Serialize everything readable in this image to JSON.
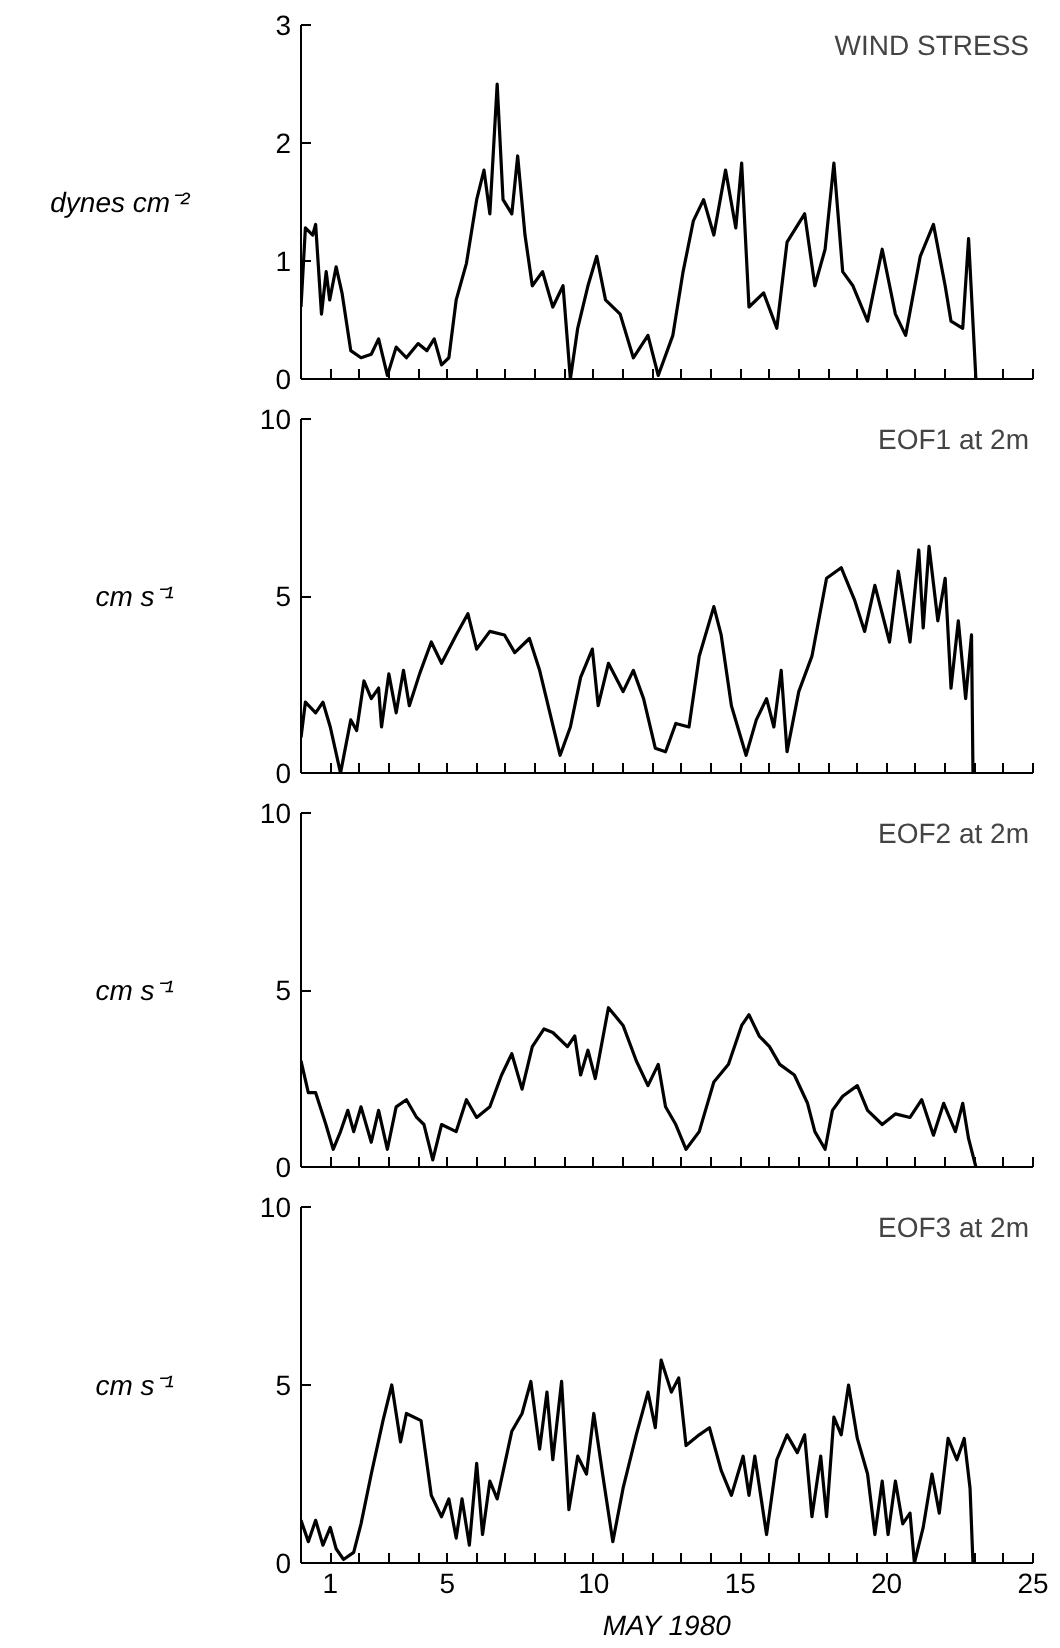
{
  "chart_data": [
    {
      "type": "line",
      "title": "WIND STRESS",
      "ylabel": "dynes cm⁻²",
      "xlim": [
        0,
        25
      ],
      "ylim": [
        0,
        3
      ],
      "yticks": [
        0,
        1,
        2,
        3
      ],
      "xticks": [
        1,
        {
          "value": 2,
          "label": null
        },
        {
          "value": 3,
          "label": null
        },
        {
          "value": 4,
          "label": null
        },
        5,
        {
          "value": 6,
          "label": null
        },
        {
          "value": 7,
          "label": null
        },
        {
          "value": 8,
          "label": null
        },
        {
          "value": 9,
          "label": null
        },
        10,
        {
          "value": 11,
          "label": null
        },
        {
          "value": 12,
          "label": null
        },
        {
          "value": 13,
          "label": null
        },
        {
          "value": 14,
          "label": null
        },
        15,
        {
          "value": 16,
          "label": null
        },
        {
          "value": 17,
          "label": null
        },
        {
          "value": 18,
          "label": null
        },
        {
          "value": 19,
          "label": null
        },
        20,
        {
          "value": 21,
          "label": null
        },
        {
          "value": 22,
          "label": null
        },
        {
          "value": 23,
          "label": null
        },
        {
          "value": 24,
          "label": null
        },
        25
      ],
      "tick_labels": "y",
      "grid": false,
      "series": [
        {
          "color": "#000000",
          "x": [
            0,
            0.15,
            0.4,
            0.5,
            0.7,
            0.86,
            0.98,
            1.2,
            1.4,
            1.7,
            2.05,
            2.4,
            2.65,
            2.95,
            3.25,
            3.6,
            4.0,
            4.3,
            4.55,
            4.8,
            5.05,
            5.3,
            5.65,
            6.0,
            6.25,
            6.45,
            6.7,
            6.9,
            7.2,
            7.4,
            7.65,
            7.9,
            8.25,
            8.6,
            8.95,
            9.2,
            9.45,
            9.8,
            10.1,
            10.4,
            10.9,
            11.35,
            11.85,
            12.2,
            12.7,
            13.05,
            13.4,
            13.75,
            14.1,
            14.5,
            14.85,
            15.05,
            15.3,
            15.8,
            16.25,
            16.6,
            17.2,
            17.55,
            17.9,
            18.2,
            18.5,
            18.85,
            19.35,
            19.85,
            20.3,
            20.65,
            21.15,
            21.6,
            22.0,
            22.2,
            22.6,
            22.8,
            23.05
          ],
          "values": [
            0.61,
            1.28,
            1.22,
            1.31,
            0.55,
            0.91,
            0.67,
            0.95,
            0.73,
            0.24,
            0.18,
            0.21,
            0.34,
            0.03,
            0.27,
            0.18,
            0.3,
            0.24,
            0.34,
            0.12,
            0.18,
            0.67,
            0.98,
            1.52,
            1.77,
            1.4,
            2.5,
            1.52,
            1.4,
            1.89,
            1.22,
            0.79,
            0.91,
            0.61,
            0.79,
            0,
            0.43,
            0.79,
            1.04,
            0.67,
            0.55,
            0.18,
            0.37,
            0.03,
            0.37,
            0.91,
            1.34,
            1.52,
            1.22,
            1.77,
            1.28,
            1.83,
            0.61,
            0.73,
            0.43,
            1.16,
            1.4,
            0.79,
            1.1,
            1.83,
            0.91,
            0.79,
            0.49,
            1.1,
            0.55,
            0.37,
            1.04,
            1.31,
            0.79,
            0.49,
            0.43,
            1.19,
            0
          ]
        }
      ]
    },
    {
      "type": "line",
      "title": "EOF1 at 2m",
      "ylabel": "cm s⁻¹",
      "xlim": [
        0,
        25
      ],
      "ylim": [
        0,
        10
      ],
      "yticks": [
        0,
        5,
        10
      ],
      "xticks": [
        1,
        {
          "value": 2,
          "label": null
        },
        {
          "value": 3,
          "label": null
        },
        {
          "value": 4,
          "label": null
        },
        5,
        {
          "value": 6,
          "label": null
        },
        {
          "value": 7,
          "label": null
        },
        {
          "value": 8,
          "label": null
        },
        {
          "value": 9,
          "label": null
        },
        10,
        {
          "value": 11,
          "label": null
        },
        {
          "value": 12,
          "label": null
        },
        {
          "value": 13,
          "label": null
        },
        {
          "value": 14,
          "label": null
        },
        15,
        {
          "value": 16,
          "label": null
        },
        {
          "value": 17,
          "label": null
        },
        {
          "value": 18,
          "label": null
        },
        {
          "value": 19,
          "label": null
        },
        20,
        {
          "value": 21,
          "label": null
        },
        {
          "value": 22,
          "label": null
        },
        {
          "value": 23,
          "label": null
        },
        {
          "value": 24,
          "label": null
        },
        25
      ],
      "tick_labels": "y",
      "grid": false,
      "series": [
        {
          "color": "#000000",
          "x": [
            0,
            0.15,
            0.5,
            0.75,
            1.0,
            1.35,
            1.7,
            1.9,
            2.15,
            2.4,
            2.65,
            2.75,
            3.0,
            3.25,
            3.5,
            3.7,
            4.05,
            4.45,
            4.8,
            5.3,
            5.7,
            6.0,
            6.45,
            6.95,
            7.3,
            7.8,
            8.15,
            8.5,
            8.85,
            9.2,
            9.55,
            9.95,
            10.15,
            10.5,
            11.0,
            11.35,
            11.7,
            12.1,
            12.45,
            12.8,
            13.25,
            13.6,
            14.1,
            14.35,
            14.7,
            15.2,
            15.55,
            15.9,
            16.15,
            16.4,
            16.6,
            17.0,
            17.45,
            17.95,
            18.45,
            18.9,
            19.25,
            19.6,
            20.1,
            20.4,
            20.8,
            21.1,
            21.25,
            21.45,
            21.75,
            22.0,
            22.2,
            22.45,
            22.7,
            22.9,
            22.95
          ],
          "values": [
            1.0,
            2.0,
            1.7,
            2.0,
            1.3,
            0,
            1.5,
            1.2,
            2.6,
            2.1,
            2.4,
            1.3,
            2.8,
            1.7,
            2.9,
            1.9,
            2.8,
            3.7,
            3.1,
            3.9,
            4.5,
            3.5,
            4.0,
            3.9,
            3.4,
            3.8,
            2.9,
            1.7,
            0.5,
            1.3,
            2.7,
            3.5,
            1.9,
            3.1,
            2.3,
            2.9,
            2.1,
            0.7,
            0.6,
            1.4,
            1.3,
            3.3,
            4.7,
            3.9,
            1.9,
            0.5,
            1.5,
            2.1,
            1.3,
            2.9,
            0.6,
            2.3,
            3.3,
            5.5,
            5.8,
            4.9,
            4.0,
            5.3,
            3.7,
            5.7,
            3.7,
            6.3,
            4.1,
            6.4,
            4.3,
            5.5,
            2.4,
            4.3,
            2.1,
            3.9,
            0
          ]
        }
      ]
    },
    {
      "type": "line",
      "title": "EOF2 at 2m",
      "ylabel": "cm s⁻¹",
      "xlim": [
        0,
        25
      ],
      "ylim": [
        0,
        10
      ],
      "yticks": [
        0,
        5,
        10
      ],
      "xticks": [
        1,
        {
          "value": 2,
          "label": null
        },
        {
          "value": 3,
          "label": null
        },
        {
          "value": 4,
          "label": null
        },
        5,
        {
          "value": 6,
          "label": null
        },
        {
          "value": 7,
          "label": null
        },
        {
          "value": 8,
          "label": null
        },
        {
          "value": 9,
          "label": null
        },
        10,
        {
          "value": 11,
          "label": null
        },
        {
          "value": 12,
          "label": null
        },
        {
          "value": 13,
          "label": null
        },
        {
          "value": 14,
          "label": null
        },
        15,
        {
          "value": 16,
          "label": null
        },
        {
          "value": 17,
          "label": null
        },
        {
          "value": 18,
          "label": null
        },
        {
          "value": 19,
          "label": null
        },
        20,
        {
          "value": 21,
          "label": null
        },
        {
          "value": 22,
          "label": null
        },
        {
          "value": 23,
          "label": null
        },
        {
          "value": 24,
          "label": null
        },
        25
      ],
      "tick_labels": "y",
      "grid": false,
      "series": [
        {
          "color": "#000000",
          "x": [
            0,
            0.25,
            0.5,
            0.85,
            1.1,
            1.35,
            1.6,
            1.8,
            2.05,
            2.4,
            2.65,
            2.95,
            3.25,
            3.6,
            3.95,
            4.2,
            4.5,
            4.8,
            5.3,
            5.65,
            6.0,
            6.45,
            6.85,
            7.2,
            7.55,
            7.9,
            8.3,
            8.6,
            9.1,
            9.35,
            9.55,
            9.8,
            10.05,
            10.5,
            11.0,
            11.45,
            11.85,
            12.2,
            12.45,
            12.8,
            13.15,
            13.6,
            14.1,
            14.6,
            15.05,
            15.3,
            15.65,
            16.0,
            16.35,
            16.85,
            17.3,
            17.55,
            17.9,
            18.15,
            18.5,
            19.0,
            19.35,
            19.85,
            20.3,
            20.8,
            21.2,
            21.6,
            21.95,
            22.35,
            22.6,
            22.8,
            23.05
          ],
          "values": [
            3.0,
            2.1,
            2.1,
            1.2,
            0.5,
            1.0,
            1.6,
            1.0,
            1.7,
            0.7,
            1.6,
            0.5,
            1.7,
            1.9,
            1.4,
            1.2,
            0.2,
            1.2,
            1.0,
            1.9,
            1.4,
            1.7,
            2.6,
            3.2,
            2.2,
            3.4,
            3.9,
            3.8,
            3.4,
            3.7,
            2.6,
            3.3,
            2.5,
            4.5,
            4.0,
            3.0,
            2.3,
            2.9,
            1.7,
            1.2,
            0.5,
            1.0,
            2.4,
            2.9,
            4.0,
            4.3,
            3.7,
            3.4,
            2.9,
            2.6,
            1.8,
            1.0,
            0.5,
            1.6,
            2.0,
            2.3,
            1.6,
            1.2,
            1.5,
            1.4,
            1.9,
            0.9,
            1.8,
            1.0,
            1.8,
            0.8,
            0
          ]
        }
      ]
    },
    {
      "type": "line",
      "title": "EOF3 at 2m",
      "ylabel": "cm s⁻¹",
      "xlabel": "MAY 1980",
      "xlim": [
        0,
        25
      ],
      "ylim": [
        0,
        10
      ],
      "yticks": [
        0,
        5,
        10
      ],
      "xticks": [
        1,
        {
          "value": 2,
          "label": null
        },
        {
          "value": 3,
          "label": null
        },
        {
          "value": 4,
          "label": null
        },
        5,
        {
          "value": 6,
          "label": null
        },
        {
          "value": 7,
          "label": null
        },
        {
          "value": 8,
          "label": null
        },
        {
          "value": 9,
          "label": null
        },
        10,
        {
          "value": 11,
          "label": null
        },
        {
          "value": 12,
          "label": null
        },
        {
          "value": 13,
          "label": null
        },
        {
          "value": 14,
          "label": null
        },
        15,
        {
          "value": 16,
          "label": null
        },
        {
          "value": 17,
          "label": null
        },
        {
          "value": 18,
          "label": null
        },
        {
          "value": 19,
          "label": null
        },
        20,
        {
          "value": 21,
          "label": null
        },
        {
          "value": 22,
          "label": null
        },
        {
          "value": 23,
          "label": null
        },
        {
          "value": 24,
          "label": null
        },
        25
      ],
      "grid": false,
      "series": [
        {
          "color": "#000000",
          "x": [
            0,
            0.25,
            0.5,
            0.75,
            1.0,
            1.2,
            1.45,
            1.8,
            2.05,
            2.4,
            2.8,
            3.1,
            3.4,
            3.6,
            4.1,
            4.45,
            4.8,
            5.05,
            5.3,
            5.5,
            5.75,
            6.0,
            6.2,
            6.45,
            6.7,
            7.2,
            7.55,
            7.85,
            8.15,
            8.4,
            8.6,
            8.9,
            9.15,
            9.45,
            9.75,
            10.0,
            10.3,
            10.65,
            11.0,
            11.45,
            11.85,
            12.1,
            12.3,
            12.65,
            12.9,
            13.15,
            13.6,
            13.95,
            14.35,
            14.7,
            15.1,
            15.3,
            15.5,
            15.9,
            16.25,
            16.6,
            16.95,
            17.2,
            17.45,
            17.75,
            17.95,
            18.2,
            18.45,
            18.7,
            19.0,
            19.35,
            19.6,
            19.85,
            20.05,
            20.3,
            20.55,
            20.8,
            20.95,
            21.25,
            21.55,
            21.8,
            22.1,
            22.4,
            22.65,
            22.85,
            22.95
          ],
          "values": [
            1.2,
            0.6,
            1.2,
            0.5,
            1.0,
            0.4,
            0.1,
            0.3,
            1.1,
            2.5,
            4.0,
            5.0,
            3.4,
            4.2,
            4.0,
            1.9,
            1.3,
            1.8,
            0.7,
            1.8,
            0.5,
            2.8,
            0.8,
            2.3,
            1.8,
            3.7,
            4.2,
            5.1,
            3.2,
            4.8,
            2.9,
            5.1,
            1.5,
            3.0,
            2.5,
            4.2,
            2.5,
            0.6,
            2.1,
            3.6,
            4.8,
            3.8,
            5.7,
            4.8,
            5.2,
            3.3,
            3.6,
            3.8,
            2.6,
            1.9,
            3.0,
            1.9,
            3.0,
            0.8,
            2.9,
            3.6,
            3.1,
            3.6,
            1.3,
            3.0,
            1.3,
            4.1,
            3.6,
            5.0,
            3.5,
            2.5,
            0.8,
            2.3,
            0.8,
            2.3,
            1.1,
            1.4,
            0.0,
            1.0,
            2.5,
            1.4,
            3.5,
            2.9,
            3.5,
            2.1,
            0
          ]
        }
      ]
    }
  ]
}
